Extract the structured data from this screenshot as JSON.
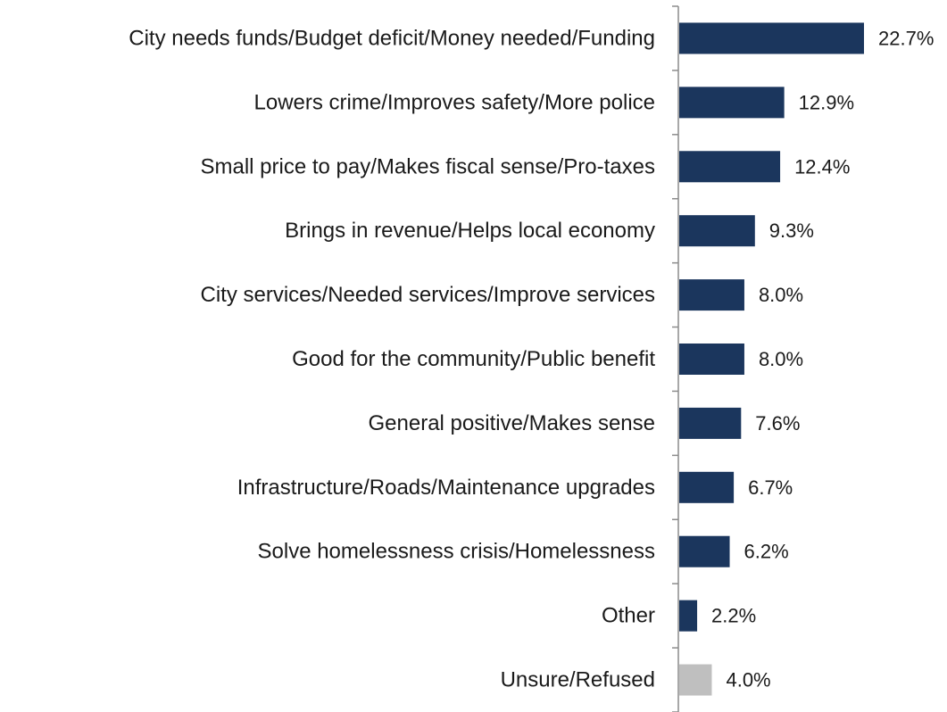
{
  "chart_data": {
    "type": "bar",
    "orientation": "horizontal",
    "categories": [
      "City needs funds/Budget deficit/Money needed/Funding",
      "Lowers crime/Improves safety/More police",
      "Small price to pay/Makes fiscal sense/Pro-taxes",
      "Brings in revenue/Helps local economy",
      "City services/Needed services/Improve services",
      "Good for the community/Public benefit",
      "General positive/Makes sense",
      "Infrastructure/Roads/Maintenance upgrades",
      "Solve homelessness crisis/Homelessness",
      "Other",
      "Unsure/Refused"
    ],
    "values": [
      22.7,
      12.9,
      12.4,
      9.3,
      8.0,
      8.0,
      7.6,
      6.7,
      6.2,
      2.2,
      4.0
    ],
    "value_labels": [
      "22.7%",
      "12.9%",
      "12.4%",
      "9.3%",
      "8.0%",
      "8.0%",
      "7.6%",
      "6.7%",
      "6.2%",
      "2.2%",
      "4.0%"
    ],
    "bar_colors": [
      "#1b365d",
      "#1b365d",
      "#1b365d",
      "#1b365d",
      "#1b365d",
      "#1b365d",
      "#1b365d",
      "#1b365d",
      "#1b365d",
      "#1b365d",
      "#bfbfbf"
    ],
    "title": "",
    "xlabel": "",
    "ylabel": "",
    "grid": false,
    "data_labels": true
  }
}
